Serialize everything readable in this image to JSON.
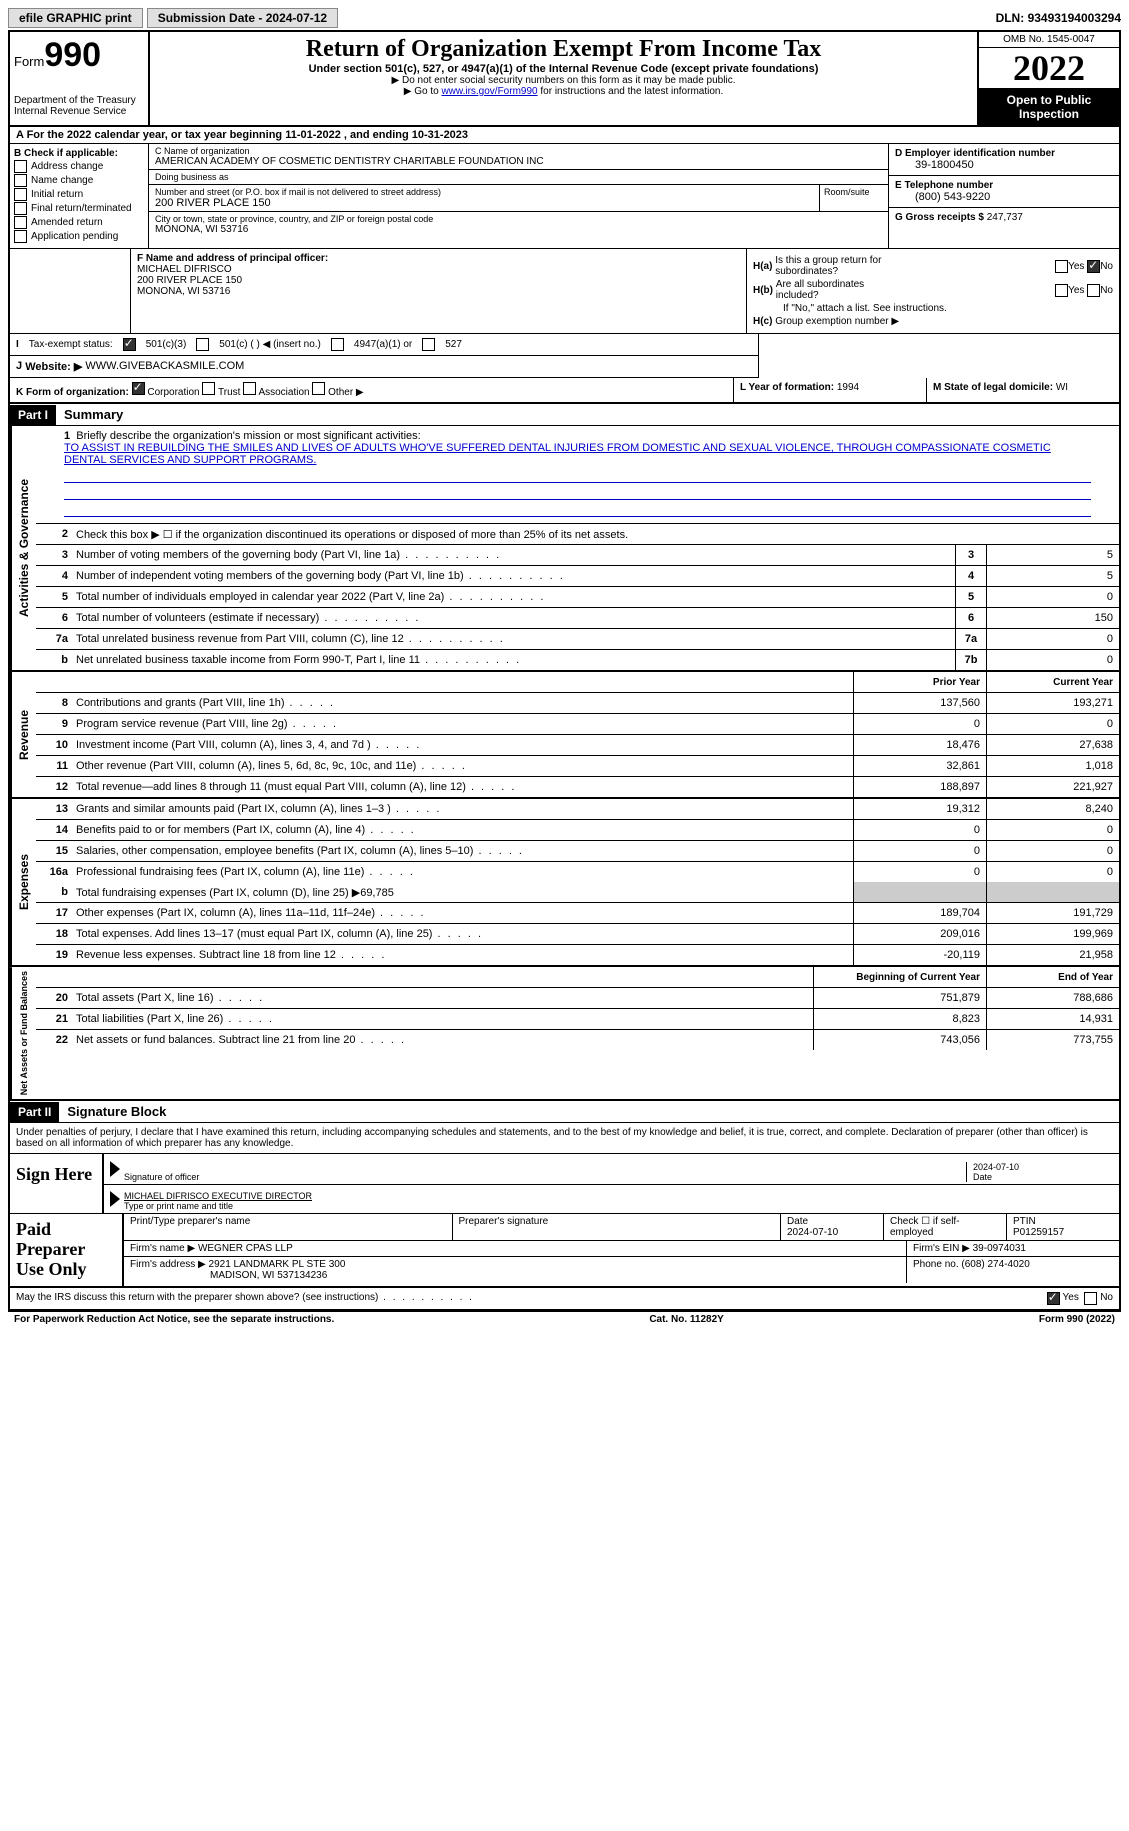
{
  "topbar": {
    "efile": "efile GRAPHIC print",
    "submission_label": "Submission Date - ",
    "submission_date": "2024-07-12",
    "dln_label": "DLN: ",
    "dln": "93493194003294"
  },
  "header": {
    "form_label": "Form",
    "form_number": "990",
    "dept1": "Department of the Treasury",
    "dept2": "Internal Revenue Service",
    "title": "Return of Organization Exempt From Income Tax",
    "subtitle": "Under section 501(c), 527, or 4947(a)(1) of the Internal Revenue Code (except private foundations)",
    "note1": "▶ Do not enter social security numbers on this form as it may be made public.",
    "note2_pre": "▶ Go to ",
    "note2_link": "www.irs.gov/Form990",
    "note2_post": " for instructions and the latest information.",
    "omb": "OMB No. 1545-0047",
    "year": "2022",
    "open": "Open to Public Inspection"
  },
  "rowA": {
    "text_pre": "A For the 2022 calendar year, or tax year beginning ",
    "begin": "11-01-2022",
    "mid": " , and ending ",
    "end": "10-31-2023"
  },
  "colB": {
    "header": "B Check if applicable:",
    "items": [
      "Address change",
      "Name change",
      "Initial return",
      "Final return/terminated",
      "Amended return",
      "Application pending"
    ]
  },
  "colC": {
    "name_lbl": "C Name of organization",
    "name": "AMERICAN ACADEMY OF COSMETIC DENTISTRY CHARITABLE FOUNDATION INC",
    "dba_lbl": "Doing business as",
    "dba": "",
    "addr_lbl": "Number and street (or P.O. box if mail is not delivered to street address)",
    "addr": "200 RIVER PLACE 150",
    "room_lbl": "Room/suite",
    "city_lbl": "City or town, state or province, country, and ZIP or foreign postal code",
    "city": "MONONA, WI  53716"
  },
  "colD": {
    "ein_lbl": "D Employer identification number",
    "ein": "39-1800450",
    "tel_lbl": "E Telephone number",
    "tel": "(800) 543-9220",
    "gross_lbl": "G Gross receipts $ ",
    "gross": "247,737"
  },
  "colF": {
    "lbl": "F Name and address of principal officer:",
    "name": "MICHAEL DIFRISCO",
    "addr1": "200 RIVER PLACE 150",
    "addr2": "MONONA, WI  53716"
  },
  "colH": {
    "a_lbl": "H(a)",
    "a_q1": "Is this a group return for",
    "a_q2": "subordinates?",
    "b_lbl": "H(b)",
    "b_q1": "Are all subordinates",
    "b_q2": "included?",
    "b_note": "If \"No,\" attach a list. See instructions.",
    "c_lbl": "H(c)",
    "c_q": "Group exemption number ▶",
    "yes": "Yes",
    "no": "No"
  },
  "rowI": {
    "lbl": "I",
    "text": "Tax-exempt status:",
    "opt1": "501(c)(3)",
    "opt2": "501(c) (  ) ◀ (insert no.)",
    "opt3": "4947(a)(1) or",
    "opt4": "527"
  },
  "rowJ": {
    "lbl": "J",
    "text": "Website: ▶",
    "val": "WWW.GIVEBACKASMILE.COM"
  },
  "rowK": {
    "lbl": "K Form of organization:",
    "opts": [
      "Corporation",
      "Trust",
      "Association",
      "Other ▶"
    ]
  },
  "rowL": {
    "lbl": "L Year of formation: ",
    "val": "1994"
  },
  "rowM": {
    "lbl": "M State of legal domicile: ",
    "val": "WI"
  },
  "part1": {
    "hdr": "Part I",
    "title": "Summary"
  },
  "summary": {
    "tab1": "Activities & Governance",
    "tab2": "Revenue",
    "tab3": "Expenses",
    "tab4": "Net Assets or Fund Balances",
    "line1_lbl": "Briefly describe the organization's mission or most significant activities:",
    "mission": "TO ASSIST IN REBUILDING THE SMILES AND LIVES OF ADULTS WHO'VE SUFFERED DENTAL INJURIES FROM DOMESTIC AND SEXUAL VIOLENCE, THROUGH COMPASSIONATE COSMETIC DENTAL SERVICES AND SUPPORT PROGRAMS.",
    "line2": "Check this box ▶ ☐ if the organization discontinued its operations or disposed of more than 25% of its net assets.",
    "prior_hdr": "Prior Year",
    "current_hdr": "Current Year",
    "boy_hdr": "Beginning of Current Year",
    "eoy_hdr": "End of Year",
    "rows_single": [
      {
        "n": "3",
        "t": "Number of voting members of the governing body (Part VI, line 1a)",
        "box": "3",
        "v": "5"
      },
      {
        "n": "4",
        "t": "Number of independent voting members of the governing body (Part VI, line 1b)",
        "box": "4",
        "v": "5"
      },
      {
        "n": "5",
        "t": "Total number of individuals employed in calendar year 2022 (Part V, line 2a)",
        "box": "5",
        "v": "0"
      },
      {
        "n": "6",
        "t": "Total number of volunteers (estimate if necessary)",
        "box": "6",
        "v": "150"
      },
      {
        "n": "7a",
        "t": "Total unrelated business revenue from Part VIII, column (C), line 12",
        "box": "7a",
        "v": "0"
      },
      {
        "n": "b",
        "t": "Net unrelated business taxable income from Form 990-T, Part I, line 11",
        "box": "7b",
        "v": "0"
      }
    ],
    "rows_rev": [
      {
        "n": "8",
        "t": "Contributions and grants (Part VIII, line 1h)",
        "p": "137,560",
        "c": "193,271"
      },
      {
        "n": "9",
        "t": "Program service revenue (Part VIII, line 2g)",
        "p": "0",
        "c": "0"
      },
      {
        "n": "10",
        "t": "Investment income (Part VIII, column (A), lines 3, 4, and 7d )",
        "p": "18,476",
        "c": "27,638"
      },
      {
        "n": "11",
        "t": "Other revenue (Part VIII, column (A), lines 5, 6d, 8c, 9c, 10c, and 11e)",
        "p": "32,861",
        "c": "1,018"
      },
      {
        "n": "12",
        "t": "Total revenue—add lines 8 through 11 (must equal Part VIII, column (A), line 12)",
        "p": "188,897",
        "c": "221,927"
      }
    ],
    "rows_exp": [
      {
        "n": "13",
        "t": "Grants and similar amounts paid (Part IX, column (A), lines 1–3 )",
        "p": "19,312",
        "c": "8,240"
      },
      {
        "n": "14",
        "t": "Benefits paid to or for members (Part IX, column (A), line 4)",
        "p": "0",
        "c": "0"
      },
      {
        "n": "15",
        "t": "Salaries, other compensation, employee benefits (Part IX, column (A), lines 5–10)",
        "p": "0",
        "c": "0"
      },
      {
        "n": "16a",
        "t": "Professional fundraising fees (Part IX, column (A), line 11e)",
        "p": "0",
        "c": "0"
      }
    ],
    "line16b": "Total fundraising expenses (Part IX, column (D), line 25) ▶69,785",
    "rows_exp2": [
      {
        "n": "17",
        "t": "Other expenses (Part IX, column (A), lines 11a–11d, 11f–24e)",
        "p": "189,704",
        "c": "191,729"
      },
      {
        "n": "18",
        "t": "Total expenses. Add lines 13–17 (must equal Part IX, column (A), line 25)",
        "p": "209,016",
        "c": "199,969"
      },
      {
        "n": "19",
        "t": "Revenue less expenses. Subtract line 18 from line 12",
        "p": "-20,119",
        "c": "21,958"
      }
    ],
    "rows_net": [
      {
        "n": "20",
        "t": "Total assets (Part X, line 16)",
        "p": "751,879",
        "c": "788,686"
      },
      {
        "n": "21",
        "t": "Total liabilities (Part X, line 26)",
        "p": "8,823",
        "c": "14,931"
      },
      {
        "n": "22",
        "t": "Net assets or fund balances. Subtract line 21 from line 20",
        "p": "743,056",
        "c": "773,755"
      }
    ]
  },
  "part2": {
    "hdr": "Part II",
    "title": "Signature Block"
  },
  "sig": {
    "decl": "Under penalties of perjury, I declare that I have examined this return, including accompanying schedules and statements, and to the best of my knowledge and belief, it is true, correct, and complete. Declaration of preparer (other than officer) is based on all information of which preparer has any knowledge.",
    "sign_here": "Sign Here",
    "sig_off_lbl": "Signature of officer",
    "date1": "2024-07-10",
    "date_lbl": "Date",
    "name": "MICHAEL DIFRISCO  EXECUTIVE DIRECTOR",
    "name_lbl": "Type or print name and title",
    "paid": "Paid Preparer Use Only",
    "p_name_lbl": "Print/Type preparer's name",
    "p_sig_lbl": "Preparer's signature",
    "p_date_lbl": "Date",
    "p_date": "2024-07-10",
    "p_self_lbl": "Check ☐ if self-employed",
    "ptin_lbl": "PTIN",
    "ptin": "P01259157",
    "firm_name_lbl": "Firm's name    ▶ ",
    "firm_name": "WEGNER CPAS LLP",
    "firm_ein_lbl": "Firm's EIN ▶ ",
    "firm_ein": "39-0974031",
    "firm_addr_lbl": "Firm's address ▶ ",
    "firm_addr1": "2921 LANDMARK PL STE 300",
    "firm_addr2": "MADISON, WI  537134236",
    "phone_lbl": "Phone no. ",
    "phone": "(608) 274-4020",
    "discuss": "May the IRS discuss this return with the preparer shown above? (see instructions)",
    "yes": "Yes",
    "no": "No"
  },
  "footer": {
    "pra": "For Paperwork Reduction Act Notice, see the separate instructions.",
    "cat": "Cat. No. 11282Y",
    "form": "Form 990 (2022)"
  }
}
